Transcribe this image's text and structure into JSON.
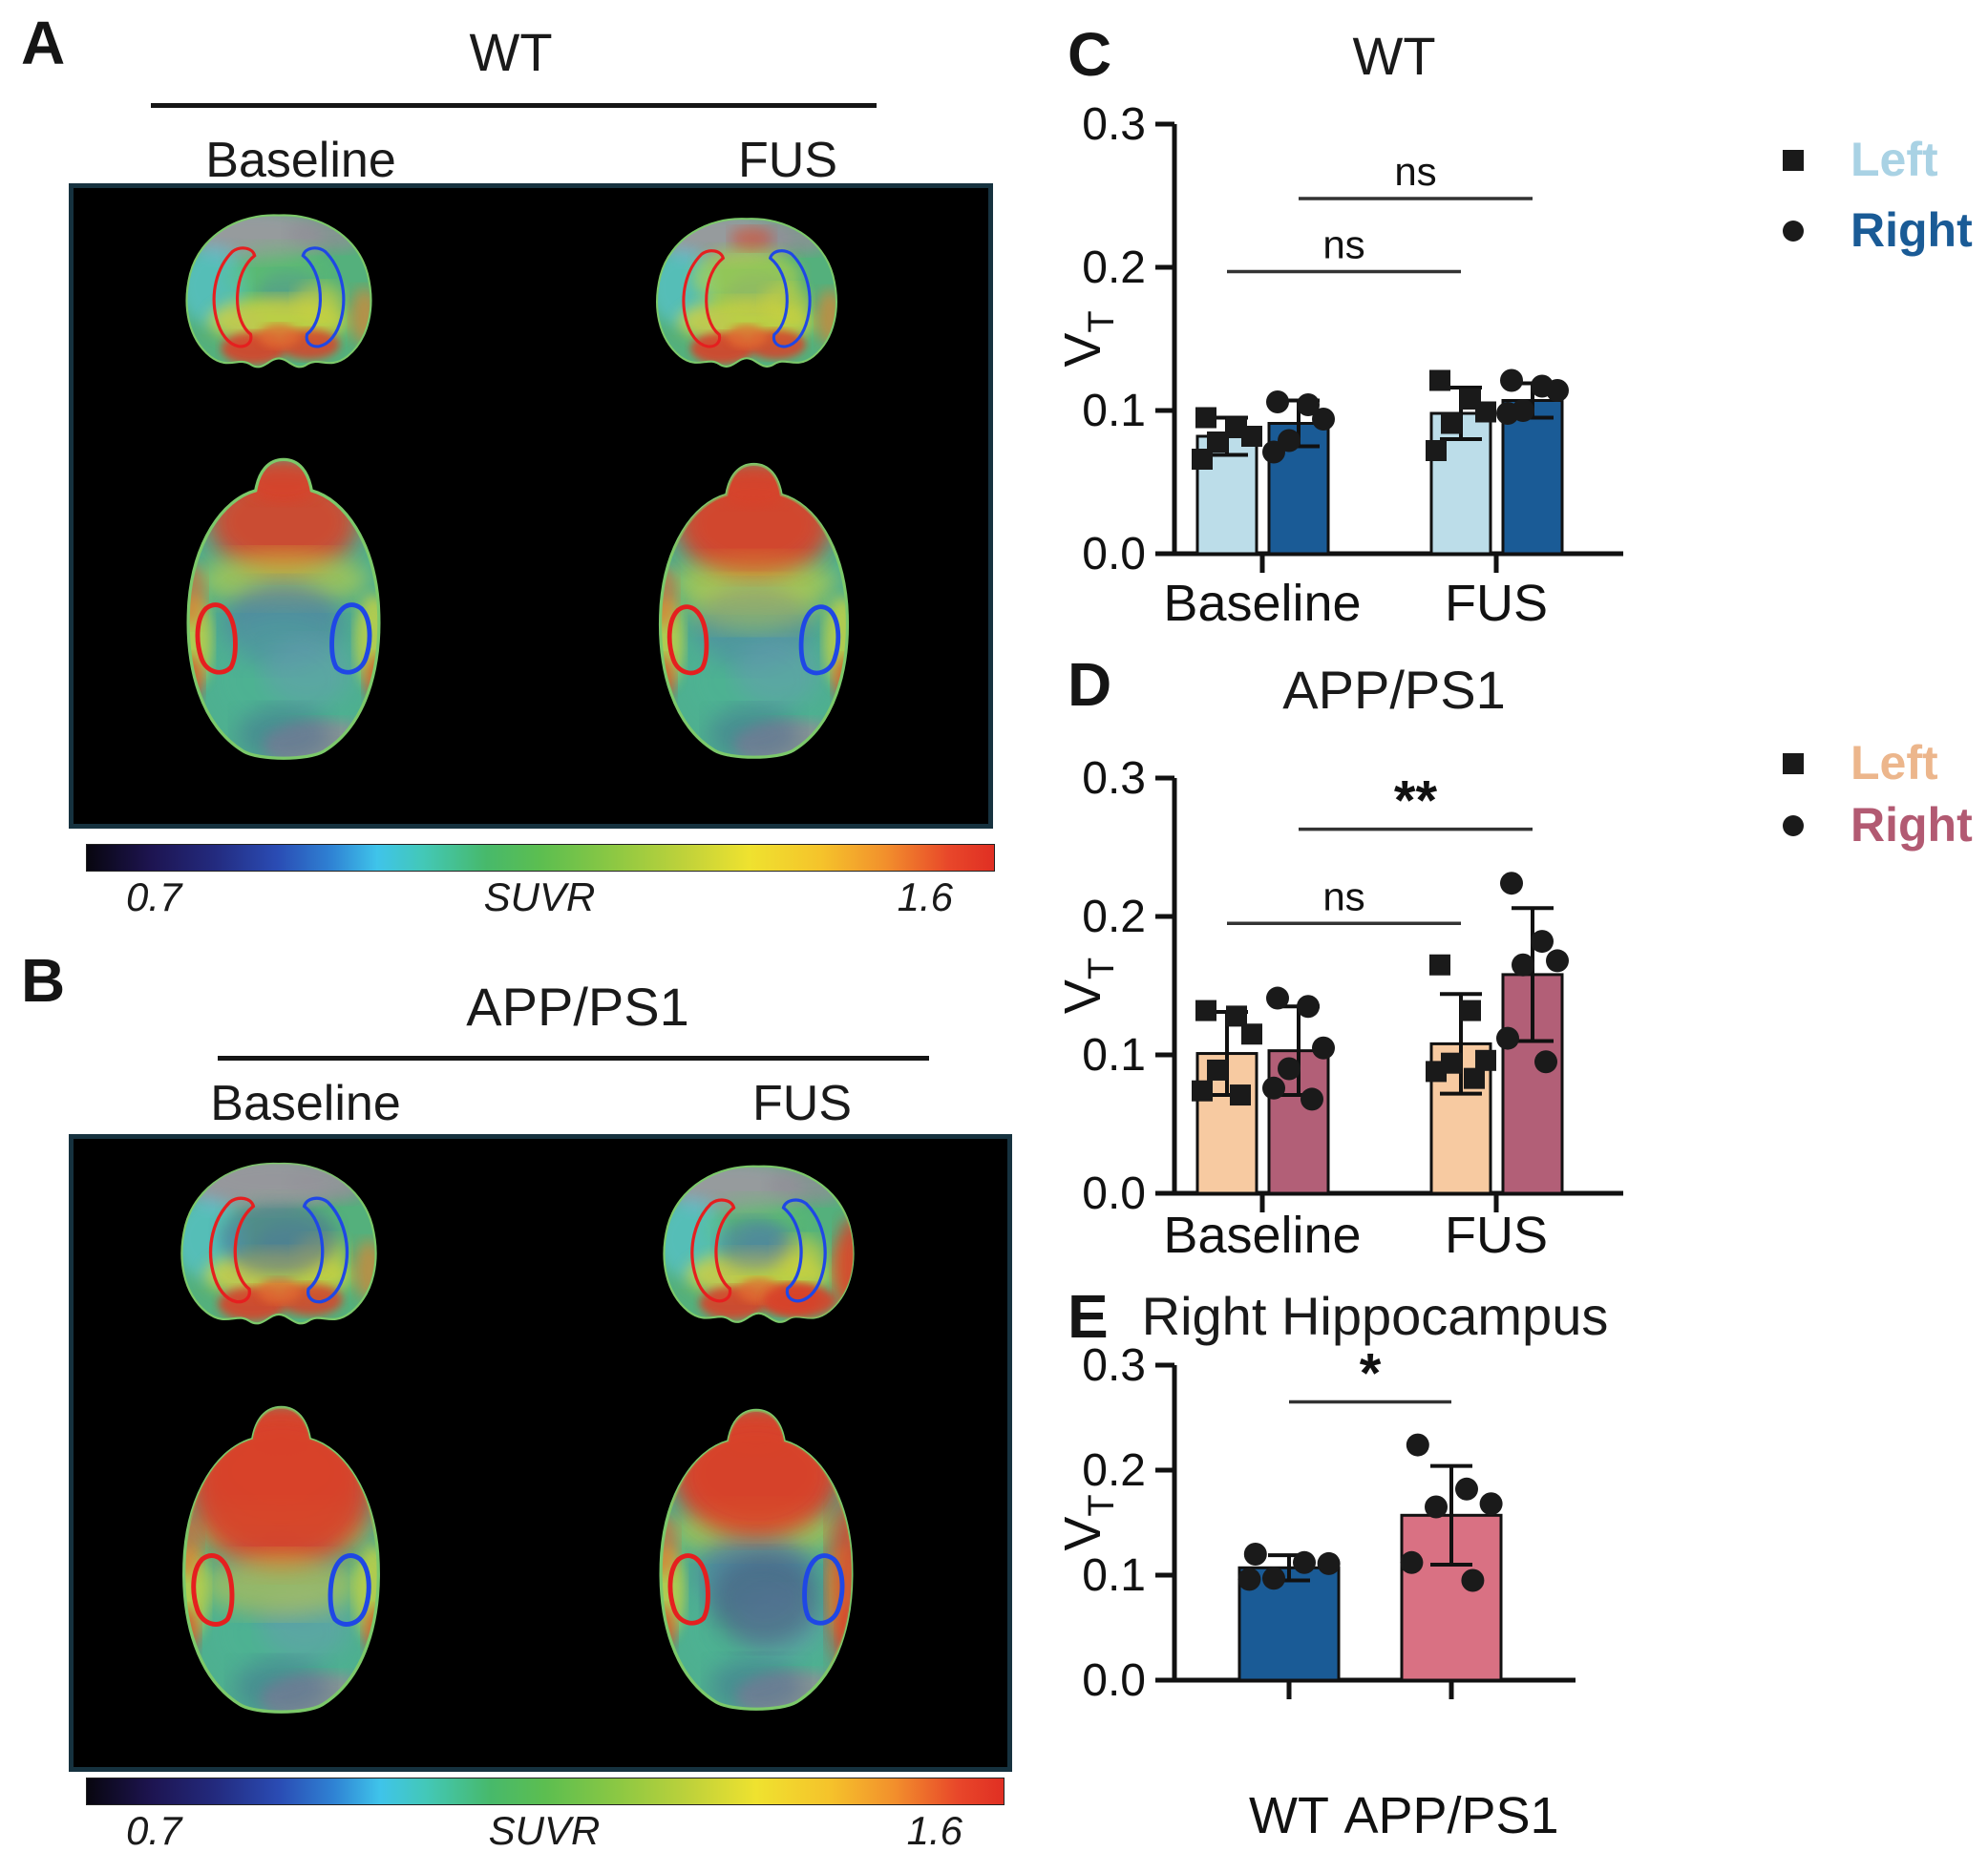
{
  "panels": {
    "a": {
      "label": "A",
      "title": "WT",
      "col_left": "Baseline",
      "col_right": "FUS",
      "colorbar": {
        "min": "0.7",
        "label": "SUVR",
        "max": "1.6"
      }
    },
    "b": {
      "label": "B",
      "title": "APP/PS1",
      "col_left": "Baseline",
      "col_right": "FUS",
      "colorbar": {
        "min": "0.7",
        "label": "SUVR",
        "max": "1.6"
      }
    },
    "c": {
      "label": "C"
    },
    "d": {
      "label": "D"
    },
    "e": {
      "label": "E"
    }
  },
  "roi_colors": {
    "left_roi": "#e51f1f",
    "right_roi": "#1f47e5"
  },
  "chart_data": [
    {
      "id": "C",
      "type": "bar",
      "title": "WT",
      "ylabel": {
        "base": "V",
        "sub": "T"
      },
      "ylim": [
        0,
        0.3
      ],
      "ytick_values": [
        0,
        0.1,
        0.2,
        0.3
      ],
      "categories": [
        "Baseline",
        "FUS"
      ],
      "legend_position": "right",
      "series": [
        {
          "name": "Left",
          "marker": "square",
          "bar_color": "#bcdde9",
          "label_color": "#a9d2e4",
          "means": [
            0.082,
            0.098
          ],
          "sd": [
            0.013,
            0.018
          ],
          "points": [
            [
              0.095,
              0.088,
              0.082,
              0.078,
              0.066
            ],
            [
              0.121,
              0.108,
              0.099,
              0.091,
              0.072
            ]
          ]
        },
        {
          "name": "Right",
          "marker": "circle",
          "bar_color": "#1a5b96",
          "label_color": "#1a5b96",
          "means": [
            0.091,
            0.107
          ],
          "sd": [
            0.016,
            0.012
          ],
          "points": [
            [
              0.106,
              0.104,
              0.094,
              0.079,
              0.071
            ],
            [
              0.121,
              0.117,
              0.114,
              0.1,
              0.098
            ]
          ]
        }
      ],
      "significance": [
        {
          "label": "ns",
          "value": 0.197,
          "from": {
            "category": 0,
            "series": 0
          },
          "to": {
            "category": 1,
            "series": 0
          }
        },
        {
          "label": "ns",
          "value": 0.248,
          "from": {
            "category": 0,
            "series": 1
          },
          "to": {
            "category": 1,
            "series": 1
          }
        }
      ]
    },
    {
      "id": "D",
      "type": "bar",
      "title": "APP/PS1",
      "ylabel": {
        "base": "V",
        "sub": "T"
      },
      "ylim": [
        0,
        0.3
      ],
      "ytick_values": [
        0,
        0.1,
        0.2,
        0.3
      ],
      "categories": [
        "Baseline",
        "FUS"
      ],
      "legend_position": "right",
      "series": [
        {
          "name": "Left",
          "marker": "square",
          "bar_color": "#f7caa1",
          "label_color": "#ecb68c",
          "means": [
            0.101,
            0.108
          ],
          "sd": [
            0.03,
            0.036
          ],
          "points": [
            [
              0.132,
              0.128,
              0.115,
              0.089,
              0.074,
              0.071
            ],
            [
              0.165,
              0.132,
              0.096,
              0.094,
              0.088,
              0.083
            ]
          ]
        },
        {
          "name": "Right",
          "marker": "circle",
          "bar_color": "#b25f77",
          "label_color": "#b25a72",
          "means": [
            0.103,
            0.158
          ],
          "sd": [
            0.032,
            0.048
          ],
          "points": [
            [
              0.141,
              0.135,
              0.105,
              0.09,
              0.076,
              0.068
            ],
            [
              0.224,
              0.182,
              0.168,
              0.165,
              0.112,
              0.095
            ]
          ]
        }
      ],
      "significance": [
        {
          "label": "ns",
          "value": 0.195,
          "from": {
            "category": 0,
            "series": 0
          },
          "to": {
            "category": 1,
            "series": 0
          }
        },
        {
          "label": "**",
          "value": 0.263,
          "from": {
            "category": 0,
            "series": 1
          },
          "to": {
            "category": 1,
            "series": 1
          }
        }
      ]
    },
    {
      "id": "E",
      "type": "bar",
      "title": "Right Hippocampus",
      "ylabel": {
        "base": "V",
        "sub": "T"
      },
      "ylim": [
        0,
        0.3
      ],
      "ytick_values": [
        0,
        0.1,
        0.2,
        0.3
      ],
      "categories": [
        "WT",
        "APP/PS1"
      ],
      "legend_position": "none",
      "series": [
        {
          "name": "",
          "marker": "circle",
          "bar_colors": [
            "#1a5b96",
            "#d97183"
          ],
          "label_color": "#111111",
          "means": [
            0.107,
            0.157
          ],
          "sd": [
            0.012,
            0.047
          ],
          "points": [
            [
              0.12,
              0.112,
              0.111,
              0.097,
              0.096
            ],
            [
              0.224,
              0.182,
              0.168,
              0.165,
              0.112,
              0.095
            ]
          ]
        }
      ],
      "significance": [
        {
          "label": "*",
          "value": 0.265,
          "from": {
            "category": 0,
            "series": 0
          },
          "to": {
            "category": 1,
            "series": 0
          }
        }
      ]
    }
  ]
}
